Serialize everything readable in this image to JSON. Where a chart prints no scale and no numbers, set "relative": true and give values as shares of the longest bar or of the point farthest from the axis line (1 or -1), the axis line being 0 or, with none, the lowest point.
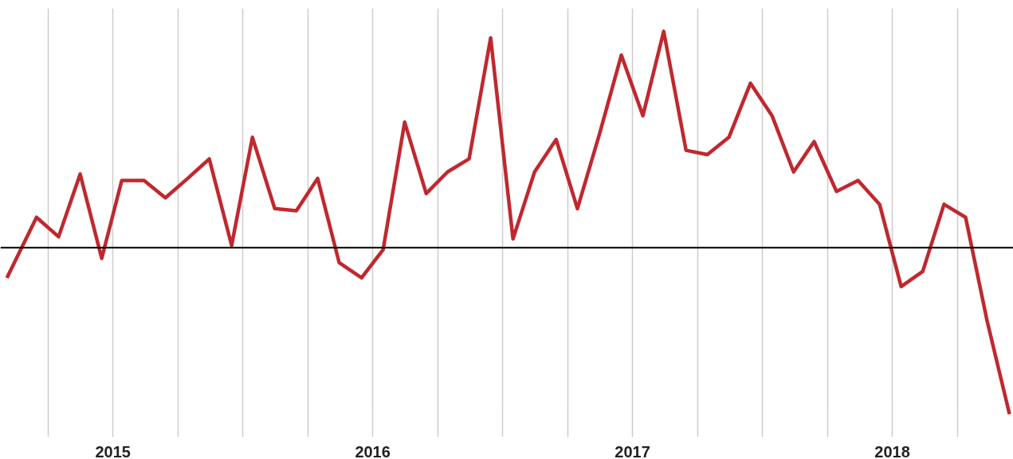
{
  "chart_data": {
    "type": "line",
    "relative": true,
    "x": [
      2015.092,
      2015.206,
      2015.291,
      2015.374,
      2015.457,
      2015.534,
      2015.62,
      2015.702,
      2015.788,
      2015.871,
      2015.957,
      2016.037,
      2016.123,
      2016.206,
      2016.288,
      2016.371,
      2016.457,
      2016.54,
      2016.623,
      2016.706,
      2016.788,
      2016.871,
      2016.954,
      2017.04,
      2017.123,
      2017.206,
      2017.288,
      2017.374,
      2017.457,
      2017.54,
      2017.62,
      2017.706,
      2017.788,
      2017.871,
      2017.954,
      2018.037,
      2018.12,
      2018.199,
      2018.285,
      2018.368,
      2018.451,
      2018.534,
      2018.617,
      2018.699,
      2018.782,
      2018.865,
      2018.951
    ],
    "series": [
      {
        "color": "#c0282f",
        "values": [
          -0.14,
          0.14,
          0.05,
          0.34,
          -0.05,
          0.31,
          0.31,
          0.23,
          0.32,
          0.41,
          0.01,
          0.51,
          0.18,
          0.17,
          0.32,
          -0.07,
          -0.14,
          -0.01,
          0.58,
          0.25,
          0.35,
          0.41,
          0.97,
          0.04,
          0.35,
          0.5,
          0.18,
          0.53,
          0.89,
          0.61,
          1,
          0.45,
          0.43,
          0.51,
          0.76,
          0.61,
          0.35,
          0.49,
          0.26,
          0.31,
          0.2,
          -0.18,
          -0.11,
          0.2,
          0.14,
          -0.34,
          -0.77
        ]
      }
    ],
    "xlim": [
      2015.067,
      2018.966
    ],
    "xticks": [
      {
        "value": 2015.25,
        "label": null
      },
      {
        "value": 2015.5,
        "label": "2015"
      },
      {
        "value": 2015.75,
        "label": null
      },
      {
        "value": 2016.0,
        "label": null
      },
      {
        "value": 2016.25,
        "label": null
      },
      {
        "value": 2016.5,
        "label": "2016"
      },
      {
        "value": 2016.75,
        "label": null
      },
      {
        "value": 2017.0,
        "label": null
      },
      {
        "value": 2017.25,
        "label": null
      },
      {
        "value": 2017.5,
        "label": "2017"
      },
      {
        "value": 2017.75,
        "label": null
      },
      {
        "value": 2018.0,
        "label": null
      },
      {
        "value": 2018.25,
        "label": null
      },
      {
        "value": 2018.5,
        "label": "2018"
      },
      {
        "value": 2018.75,
        "label": null
      }
    ],
    "grid": "x",
    "tick_labels": "x",
    "marker": "none",
    "line_style": "solid"
  }
}
